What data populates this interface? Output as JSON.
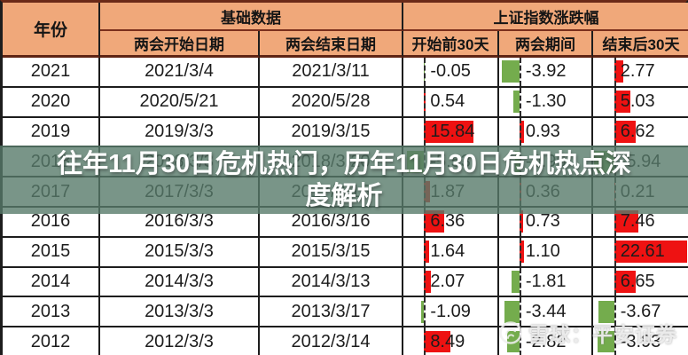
{
  "header": {
    "year": "年份",
    "basic_group": "基础数据",
    "index_group": "上证指数涨跌幅",
    "start_date": "两会开始日期",
    "end_date": "两会结束日期",
    "pre30": "开始前30天",
    "during": "两会期间",
    "post30": "结束后30天"
  },
  "overlay": {
    "title_line1": "往年11月30日危机热门，历年11月30日危机热点深",
    "title_line2": "度解析",
    "full_title": "往年11月30日危机热门，历年11月30日危机热点深度解析"
  },
  "watermark": {
    "icon": "xueqiu-snowball-logo",
    "text": "雪球：平安证券"
  },
  "colors": {
    "header_bg": "#f0a87a",
    "maroon_border": "#6b2a18",
    "grid_border": "#1d1d1d",
    "bar_positive": "#ee1212",
    "bar_negative": "#74ac4d",
    "banner_bg": "rgba(88,122,106,0.80)"
  },
  "bar_config": {
    "axis_pct": 22,
    "max_pos_pct": 76,
    "max_neg_pct": 21,
    "columns": [
      {
        "key": "pre30",
        "pos_scale": 3.3,
        "neg_scale": 3.3
      },
      {
        "key": "during",
        "pos_scale": 4.8,
        "neg_scale": 4.8
      },
      {
        "key": "post30",
        "pos_scale": 3.35,
        "neg_scale": 4.5
      }
    ]
  },
  "chart_data": {
    "type": "table",
    "title": "往年11月30日危机热门，历年11月30日危机热点深度解析",
    "columns": [
      "年份",
      "两会开始日期",
      "两会结束日期",
      "开始前30天",
      "两会期间",
      "结束后30天"
    ],
    "column_groups": [
      {
        "label": "基础数据",
        "columns": [
          "两会开始日期",
          "两会结束日期"
        ]
      },
      {
        "label": "上证指数涨跌幅",
        "columns": [
          "开始前30天",
          "两会期间",
          "结束后30天"
        ]
      }
    ],
    "bar_legend": {
      "positive": "red data bar",
      "negative": "green data bar"
    },
    "rows": [
      {
        "year": "2021",
        "start": "2021/3/4",
        "end": "2021/3/11",
        "pre30": "-0.05",
        "during": "-3.92",
        "post30": "2.77"
      },
      {
        "year": "2020",
        "start": "2020/5/21",
        "end": "2020/5/28",
        "pre30": "0.54",
        "during": "-1.30",
        "post30": "5.03"
      },
      {
        "year": "2019",
        "start": "2019/3/3",
        "end": "2019/3/15",
        "pre30": "15.84",
        "during": "0.93",
        "post30": "6.62"
      },
      {
        "year": "2018",
        "start": "2018/3/3",
        "end": "2018/3/20",
        "pre30": "-5.53",
        "during": "-0.96",
        "post30": "-5.94"
      },
      {
        "year": "2017",
        "start": "2017/3/3",
        "end": "2017/3/15",
        "pre30": "1.87",
        "during": "0.36",
        "post30": "0.21"
      },
      {
        "year": "2016",
        "start": "2016/3/3",
        "end": "2016/3/16",
        "pre30": "6.36",
        "during": "0.73",
        "post30": "7.46"
      },
      {
        "year": "2015",
        "start": "2015/3/3",
        "end": "2015/3/15",
        "pre30": "1.64",
        "during": "1.10",
        "post30": "22.61"
      },
      {
        "year": "2014",
        "start": "2014/3/3",
        "end": "2014/3/13",
        "pre30": "2.07",
        "during": "-1.81",
        "post30": "6.65"
      },
      {
        "year": "2013",
        "start": "2013/3/3",
        "end": "2013/3/17",
        "pre30": "-1.09",
        "during": "-3.44",
        "post30": "-3.67"
      },
      {
        "year": "2012",
        "start": "2012/3/3",
        "end": "2012/3/14",
        "pre30": "8.49",
        "during": "-2.82",
        "post30": "-3.93"
      }
    ]
  }
}
